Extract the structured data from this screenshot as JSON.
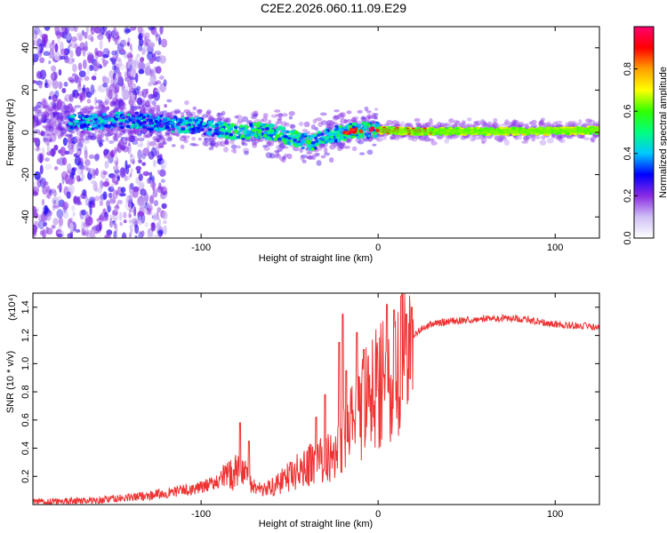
{
  "title": "C2E2.2026.060.11.09.E29",
  "chart_data": [
    {
      "type": "heatmap",
      "xlabel": "Height of straight line (km)",
      "ylabel": "Frequency (Hz)",
      "xlim": [
        -195,
        125
      ],
      "ylim": [
        -50,
        50
      ],
      "x_ticks": [
        -100,
        0,
        100
      ],
      "y_ticks": [
        -40,
        -20,
        0,
        20,
        40
      ],
      "colorbar": {
        "label": "Normalized spectral amplitude",
        "range": [
          0.0,
          1.0
        ],
        "ticks": [
          0.0,
          0.2,
          0.4,
          0.6,
          0.8
        ],
        "tick_labels": [
          "0.0",
          "0.2",
          "0.4",
          "0.6",
          "0.8"
        ],
        "colormap": [
          "#ffffff",
          "#cfc0f5",
          "#8a2be2",
          "#0000ff",
          "#00c8ff",
          "#00ff80",
          "#32ff00",
          "#ffff00",
          "#ffa000",
          "#ff0000",
          "#ff0070"
        ]
      },
      "ridge_center": [
        [
          -185,
          5
        ],
        [
          -160,
          5
        ],
        [
          -140,
          6
        ],
        [
          -120,
          4
        ],
        [
          -100,
          3
        ],
        [
          -80,
          0
        ],
        [
          -65,
          1
        ],
        [
          -50,
          -2
        ],
        [
          -38,
          -5
        ],
        [
          -30,
          -2
        ],
        [
          -20,
          0
        ],
        [
          -10,
          1
        ],
        [
          0,
          1
        ],
        [
          20,
          0.5
        ],
        [
          50,
          0.5
        ],
        [
          90,
          0.5
        ],
        [
          125,
          1
        ]
      ]
    },
    {
      "type": "line",
      "xlabel": "Height of straight line (km)",
      "ylabel": "SNR (10 * v/v)",
      "scale_label": "(x10⁴)",
      "xlim": [
        -195,
        125
      ],
      "ylim": [
        0,
        1.5
      ],
      "x_ticks": [
        -100,
        0,
        100
      ],
      "y_ticks": [
        0.2,
        0.4,
        0.6,
        0.8,
        1.0,
        1.2,
        1.4
      ],
      "y_tick_labels": [
        "0.2",
        "0.4",
        "0.6",
        "0.8",
        "1.0",
        "1.2",
        "1.4"
      ],
      "color": "#ee3333",
      "envelope": [
        [
          -195,
          0.02
        ],
        [
          -160,
          0.03
        ],
        [
          -140,
          0.05
        ],
        [
          -120,
          0.08
        ],
        [
          -100,
          0.12
        ],
        [
          -90,
          0.17
        ],
        [
          -80,
          0.23
        ],
        [
          -75,
          0.25
        ],
        [
          -70,
          0.12
        ],
        [
          -60,
          0.12
        ],
        [
          -50,
          0.2
        ],
        [
          -40,
          0.28
        ],
        [
          -30,
          0.32
        ],
        [
          -25,
          0.36
        ],
        [
          -20,
          0.45
        ],
        [
          -15,
          0.55
        ],
        [
          -10,
          0.65
        ],
        [
          -5,
          0.76
        ],
        [
          0,
          0.88
        ],
        [
          5,
          0.93
        ],
        [
          10,
          0.98
        ],
        [
          15,
          1.12
        ],
        [
          20,
          1.2
        ],
        [
          25,
          1.25
        ],
        [
          30,
          1.28
        ],
        [
          40,
          1.3
        ],
        [
          60,
          1.32
        ],
        [
          80,
          1.32
        ],
        [
          90,
          1.3
        ],
        [
          100,
          1.28
        ],
        [
          125,
          1.26
        ]
      ],
      "spikes": [
        [
          -78,
          0.58
        ],
        [
          -73,
          0.45
        ],
        [
          -35,
          0.62
        ],
        [
          -30,
          0.78
        ],
        [
          -22,
          1.15
        ],
        [
          -20,
          1.35
        ],
        [
          -18,
          0.95
        ],
        [
          -12,
          1.22
        ],
        [
          -8,
          1.1
        ],
        [
          5,
          1.42
        ],
        [
          9,
          1.38
        ],
        [
          13,
          1.48
        ],
        [
          16,
          1.35
        ],
        [
          19,
          1.4
        ]
      ]
    }
  ]
}
